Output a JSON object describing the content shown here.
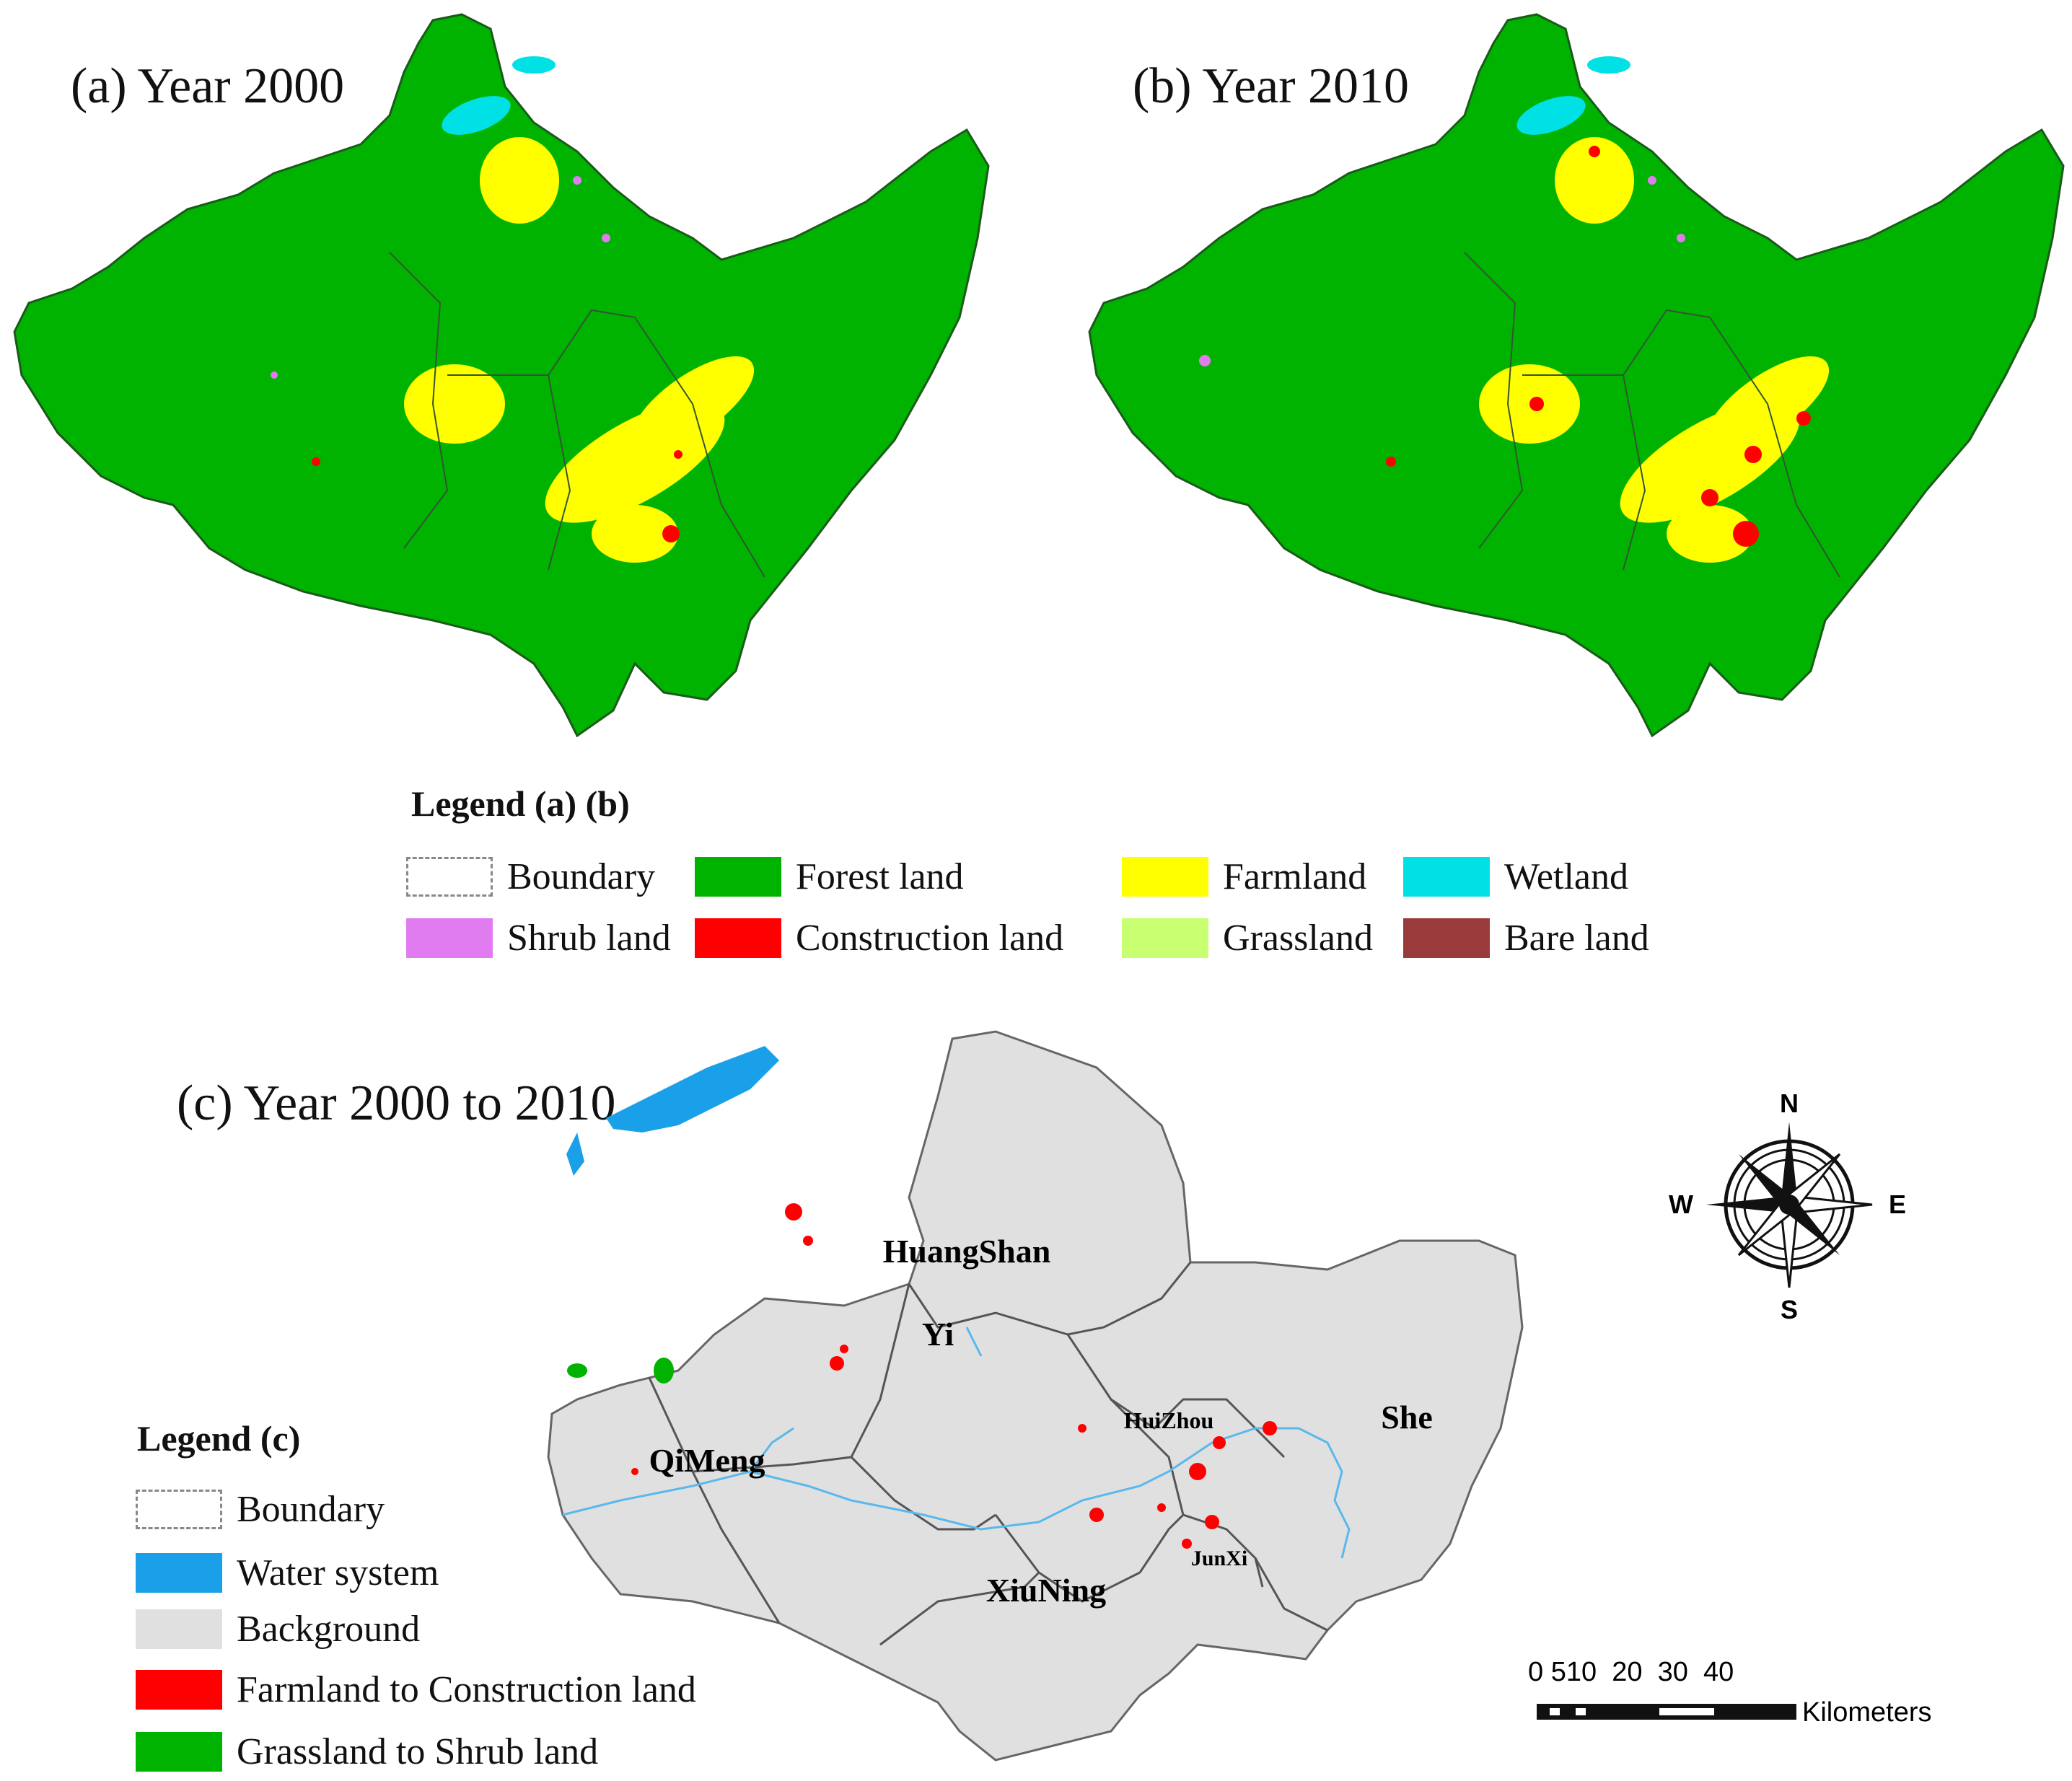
{
  "panels": {
    "a_title": "(a) Year 2000",
    "b_title": "(b) Year 2010",
    "c_title": "(c) Year 2000 to 2010"
  },
  "legend_ab": {
    "heading": "Legend (a) (b)",
    "items": [
      {
        "label": "Boundary",
        "color": "#ffffff",
        "style": "dashed"
      },
      {
        "label": "Forest land",
        "color": "#00b300"
      },
      {
        "label": "Farmland",
        "color": "#ffff00"
      },
      {
        "label": "Wetland",
        "color": "#00e1e6"
      },
      {
        "label": "Shrub land",
        "color": "#e07cf0"
      },
      {
        "label": "Construction land",
        "color": "#ff0000"
      },
      {
        "label": "Grassland",
        "color": "#c8ff70"
      },
      {
        "label": "Bare land",
        "color": "#9a3b3b"
      }
    ]
  },
  "legend_c": {
    "heading": "Legend (c)",
    "items": [
      {
        "label": "Boundary",
        "color": "#ffffff",
        "style": "dashed"
      },
      {
        "label": "Water system",
        "color": "#1aa0e8"
      },
      {
        "label": "Background",
        "color": "#e0e0e0"
      },
      {
        "label": "Farmland to Construction land",
        "color": "#ff0000"
      },
      {
        "label": "Grassland to Shrub land",
        "color": "#00b300"
      }
    ]
  },
  "regions": [
    "HuangShan",
    "Yi",
    "HuiZhou",
    "She",
    "QiMeng",
    "JunXi",
    "XiuNing"
  ],
  "compass": {
    "n": "N",
    "s": "S",
    "e": "E",
    "w": "W"
  },
  "scale_bar": {
    "ticks": [
      "0",
      "5",
      "10",
      "20",
      "30",
      "40"
    ],
    "tick_text": "0 510  20  30  40",
    "unit": "Kilometers"
  }
}
